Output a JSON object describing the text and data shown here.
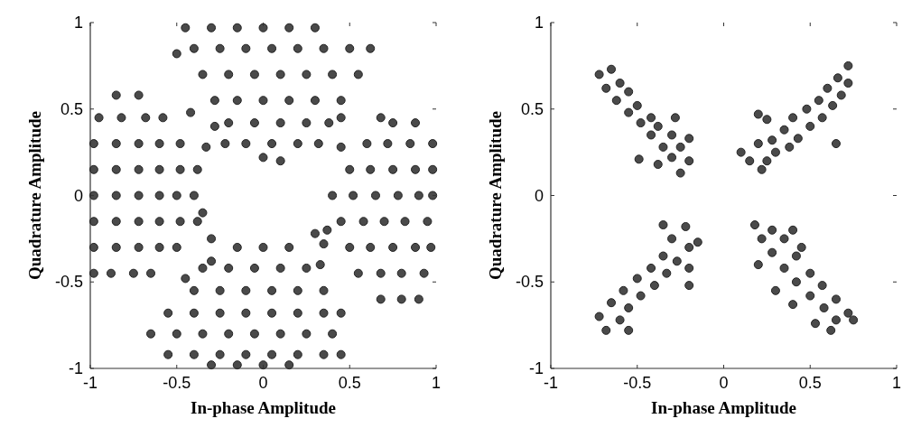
{
  "chart_data": [
    {
      "type": "scatter",
      "xlabel": "In-phase Amplitude",
      "ylabel": "Quadrature Amplitude",
      "xlim": [
        -1,
        1
      ],
      "ylim": [
        -1,
        1
      ],
      "xticks": [
        -1,
        -0.5,
        0,
        0.5,
        1
      ],
      "yticks": [
        -1,
        -0.5,
        0,
        0.5,
        1
      ],
      "marker": "circle",
      "grid": false,
      "series": [
        {
          "color": "#4a4a4a",
          "x": [
            -0.45,
            -0.3,
            -0.15,
            0,
            0.15,
            0.3,
            -0.4,
            -0.25,
            -0.1,
            0.05,
            0.2,
            0.35,
            0.5,
            0.62,
            -0.35,
            -0.2,
            -0.05,
            0.1,
            0.25,
            0.4,
            0.55,
            -0.28,
            -0.15,
            0,
            0.15,
            0.3,
            0.45,
            -0.2,
            -0.05,
            0.1,
            0.25,
            0.38,
            -0.1,
            0.05,
            0.2,
            0.32,
            -0.5,
            -0.28,
            -0.22,
            -0.33,
            0,
            0.1,
            0.45
          ],
          "values": [
            0.97,
            0.97,
            0.97,
            0.97,
            0.97,
            0.97,
            0.85,
            0.85,
            0.85,
            0.85,
            0.85,
            0.85,
            0.85,
            0.85,
            0.7,
            0.7,
            0.7,
            0.7,
            0.7,
            0.7,
            0.7,
            0.55,
            0.55,
            0.55,
            0.55,
            0.55,
            0.55,
            0.42,
            0.42,
            0.42,
            0.42,
            0.42,
            0.3,
            0.3,
            0.3,
            0.3,
            0.82,
            0.4,
            0.3,
            0.28,
            0.22,
            0.2,
            0.45
          ]
        },
        {
          "color": "#4a4a4a",
          "x": [
            -0.85,
            -0.72,
            -0.95,
            -0.82,
            -0.68,
            -0.58,
            -0.98,
            -0.85,
            -0.72,
            -0.6,
            -0.48,
            -0.98,
            -0.85,
            -0.72,
            -0.6,
            -0.48,
            -0.38,
            -0.98,
            -0.85,
            -0.72,
            -0.6,
            -0.5,
            -0.4,
            -0.98,
            -0.85,
            -0.72,
            -0.6,
            -0.48,
            -0.38,
            -0.98,
            -0.85,
            -0.72,
            -0.6,
            -0.5,
            -0.98,
            -0.88,
            -0.75,
            -0.65,
            -0.3,
            -0.35,
            -0.42
          ],
          "values": [
            0.58,
            0.58,
            0.45,
            0.45,
            0.45,
            0.45,
            0.3,
            0.3,
            0.3,
            0.3,
            0.3,
            0.15,
            0.15,
            0.15,
            0.15,
            0.15,
            0.15,
            0,
            0,
            0,
            0,
            0,
            0,
            -0.15,
            -0.15,
            -0.15,
            -0.15,
            -0.15,
            -0.15,
            -0.3,
            -0.3,
            -0.3,
            -0.3,
            -0.3,
            -0.45,
            -0.45,
            -0.45,
            -0.45,
            -0.25,
            -0.1,
            0.48
          ]
        },
        {
          "color": "#4a4a4a",
          "x": [
            0.75,
            0.88,
            0.6,
            0.72,
            0.85,
            0.98,
            0.5,
            0.62,
            0.75,
            0.88,
            0.98,
            0.4,
            0.52,
            0.65,
            0.78,
            0.9,
            0.98,
            0.45,
            0.58,
            0.7,
            0.82,
            0.95,
            0.5,
            0.62,
            0.75,
            0.88,
            0.97,
            0.55,
            0.68,
            0.8,
            0.93,
            0.68,
            0.8,
            0.9,
            0.37,
            0.3,
            0.33,
            0.45,
            0.68
          ],
          "values": [
            0.42,
            0.42,
            0.3,
            0.3,
            0.3,
            0.3,
            0.15,
            0.15,
            0.15,
            0.15,
            0.15,
            0,
            0,
            0,
            0,
            0,
            0,
            -0.15,
            -0.15,
            -0.15,
            -0.15,
            -0.15,
            -0.3,
            -0.3,
            -0.3,
            -0.3,
            -0.3,
            -0.45,
            -0.45,
            -0.45,
            -0.45,
            -0.6,
            -0.6,
            -0.6,
            -0.2,
            -0.22,
            -0.4,
            0.28,
            0.45
          ]
        },
        {
          "color": "#4a4a4a",
          "x": [
            -0.15,
            0,
            0.15,
            -0.35,
            -0.2,
            -0.05,
            0.1,
            0.25,
            -0.4,
            -0.25,
            -0.1,
            0.05,
            0.2,
            0.35,
            -0.55,
            -0.4,
            -0.25,
            -0.1,
            0.05,
            0.2,
            0.35,
            0.45,
            -0.65,
            -0.5,
            -0.35,
            -0.2,
            -0.05,
            0.1,
            0.25,
            0.4,
            -0.55,
            -0.4,
            -0.25,
            -0.1,
            0.05,
            0.2,
            0.35,
            0.45,
            -0.3,
            -0.15,
            0,
            0.15,
            -0.45,
            -0.3,
            0.35
          ],
          "values": [
            -0.3,
            -0.3,
            -0.3,
            -0.42,
            -0.42,
            -0.42,
            -0.42,
            -0.42,
            -0.55,
            -0.55,
            -0.55,
            -0.55,
            -0.55,
            -0.55,
            -0.68,
            -0.68,
            -0.68,
            -0.68,
            -0.68,
            -0.68,
            -0.68,
            -0.68,
            -0.8,
            -0.8,
            -0.8,
            -0.8,
            -0.8,
            -0.8,
            -0.8,
            -0.8,
            -0.92,
            -0.92,
            -0.92,
            -0.92,
            -0.92,
            -0.92,
            -0.92,
            -0.92,
            -0.98,
            -0.98,
            -0.98,
            -0.98,
            -0.48,
            -0.38,
            -0.28
          ]
        }
      ]
    },
    {
      "type": "scatter",
      "xlabel": "In-phase Amplitude",
      "ylabel": "Quadrature Amplitude",
      "xlim": [
        -1,
        1
      ],
      "ylim": [
        -1,
        1
      ],
      "xticks": [
        -1,
        -0.5,
        0,
        0.5,
        1
      ],
      "yticks": [
        -1,
        -0.5,
        0,
        0.5,
        1
      ],
      "marker": "circle",
      "grid": false,
      "series": [
        {
          "color": "#4a4a4a",
          "x": [
            0.1,
            0.15,
            0.2,
            0.25,
            0.28,
            0.3,
            0.35,
            0.38,
            0.4,
            0.43,
            0.48,
            0.5,
            0.55,
            0.57,
            0.6,
            0.63,
            0.66,
            0.68,
            0.72,
            0.72,
            0.2,
            0.25,
            0.22,
            0.65
          ],
          "values": [
            0.25,
            0.2,
            0.3,
            0.2,
            0.32,
            0.25,
            0.38,
            0.28,
            0.45,
            0.33,
            0.5,
            0.4,
            0.55,
            0.45,
            0.62,
            0.52,
            0.68,
            0.58,
            0.75,
            0.65,
            0.47,
            0.44,
            0.15,
            0.3
          ]
        },
        {
          "color": "#4a4a4a",
          "x": [
            -0.72,
            -0.65,
            -0.68,
            -0.6,
            -0.62,
            -0.55,
            -0.55,
            -0.5,
            -0.48,
            -0.42,
            -0.42,
            -0.38,
            -0.35,
            -0.3,
            -0.3,
            -0.25,
            -0.2,
            -0.28,
            -0.2,
            -0.38,
            -0.49,
            -0.25
          ],
          "values": [
            0.7,
            0.73,
            0.62,
            0.65,
            0.55,
            0.6,
            0.48,
            0.52,
            0.42,
            0.45,
            0.35,
            0.4,
            0.28,
            0.35,
            0.22,
            0.28,
            0.2,
            0.45,
            0.33,
            0.18,
            0.21,
            0.13
          ]
        },
        {
          "color": "#4a4a4a",
          "x": [
            -0.72,
            -0.68,
            -0.65,
            -0.6,
            -0.58,
            -0.55,
            -0.5,
            -0.48,
            -0.42,
            -0.4,
            -0.35,
            -0.33,
            -0.3,
            -0.27,
            -0.22,
            -0.2,
            -0.15,
            -0.2,
            -0.2,
            -0.55,
            -0.35
          ],
          "values": [
            -0.7,
            -0.78,
            -0.62,
            -0.72,
            -0.55,
            -0.65,
            -0.48,
            -0.58,
            -0.42,
            -0.52,
            -0.35,
            -0.45,
            -0.25,
            -0.38,
            -0.18,
            -0.3,
            -0.27,
            -0.42,
            -0.52,
            -0.78,
            -0.17
          ]
        },
        {
          "color": "#4a4a4a",
          "x": [
            0.18,
            0.22,
            0.28,
            0.2,
            0.28,
            0.35,
            0.4,
            0.35,
            0.42,
            0.45,
            0.42,
            0.5,
            0.5,
            0.57,
            0.58,
            0.65,
            0.65,
            0.72,
            0.75,
            0.62,
            0.3,
            0.4,
            0.53
          ],
          "values": [
            -0.17,
            -0.25,
            -0.2,
            -0.4,
            -0.33,
            -0.25,
            -0.2,
            -0.42,
            -0.35,
            -0.3,
            -0.5,
            -0.45,
            -0.58,
            -0.52,
            -0.65,
            -0.6,
            -0.72,
            -0.68,
            -0.72,
            -0.78,
            -0.55,
            -0.63,
            -0.74
          ]
        }
      ]
    }
  ]
}
